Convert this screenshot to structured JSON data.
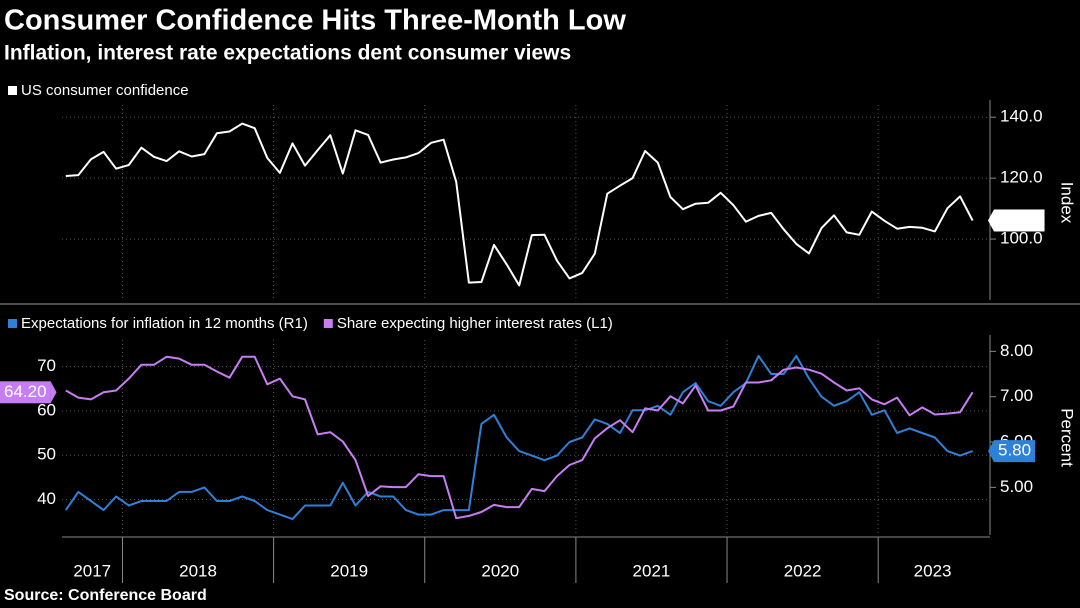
{
  "chart_data": [
    {
      "type": "line",
      "title": "Consumer Confidence Hits Three-Month Low",
      "subtitle": "Inflation, interest rate expectations dent consumer views",
      "source": "Source: Conference Board",
      "ylabel": "Index",
      "y_axis_position": "right",
      "grid": true,
      "xlim": [
        2017.6,
        2023.72
      ],
      "ylim": [
        80,
        144
      ],
      "yticks": [
        {
          "value": 100,
          "label": "100.0"
        },
        {
          "value": 120,
          "label": "120.0"
        },
        {
          "value": 140,
          "label": "140.0"
        }
      ],
      "x": [
        2017.625,
        2017.708,
        2017.792,
        2017.875,
        2017.958,
        2018.042,
        2018.125,
        2018.208,
        2018.292,
        2018.375,
        2018.458,
        2018.542,
        2018.625,
        2018.708,
        2018.792,
        2018.875,
        2018.958,
        2019.042,
        2019.125,
        2019.208,
        2019.292,
        2019.375,
        2019.458,
        2019.542,
        2019.625,
        2019.708,
        2019.792,
        2019.875,
        2019.958,
        2020.042,
        2020.125,
        2020.208,
        2020.292,
        2020.375,
        2020.458,
        2020.542,
        2020.625,
        2020.708,
        2020.792,
        2020.875,
        2020.958,
        2021.042,
        2021.125,
        2021.208,
        2021.292,
        2021.375,
        2021.458,
        2021.542,
        2021.625,
        2021.708,
        2021.792,
        2021.875,
        2021.958,
        2022.042,
        2022.125,
        2022.208,
        2022.292,
        2022.375,
        2022.458,
        2022.542,
        2022.625,
        2022.708,
        2022.792,
        2022.875,
        2022.958,
        2023.042,
        2023.125,
        2023.208,
        2023.292,
        2023.375,
        2023.458,
        2023.542,
        2023.625
      ],
      "series": [
        {
          "name": "US consumer confidence",
          "color": "#ffffff",
          "values": [
            120.7,
            121.0,
            126.2,
            128.6,
            123.1,
            124.3,
            130.0,
            127.0,
            125.6,
            128.8,
            127.1,
            127.9,
            134.7,
            135.3,
            137.9,
            136.4,
            126.6,
            121.7,
            131.4,
            124.1,
            129.2,
            134.1,
            121.5,
            135.7,
            134.2,
            125.1,
            126.1,
            126.8,
            128.2,
            131.6,
            132.6,
            118.8,
            85.7,
            85.9,
            98.1,
            91.7,
            84.8,
            101.3,
            101.4,
            92.9,
            87.1,
            88.9,
            95.2,
            114.9,
            117.5,
            120.0,
            128.9,
            125.1,
            113.8,
            109.8,
            111.6,
            111.9,
            115.2,
            111.1,
            105.7,
            107.6,
            108.6,
            103.2,
            98.4,
            95.3,
            103.6,
            107.8,
            102.2,
            101.4,
            109.0,
            106.0,
            103.4,
            104.0,
            103.7,
            102.5,
            110.1,
            114.0,
            106.1
          ]
        }
      ]
    },
    {
      "type": "line",
      "y2label": "Percent",
      "grid": true,
      "xlim": [
        2017.6,
        2023.72
      ],
      "xticks": [
        {
          "value": 2017,
          "label": "2017"
        },
        {
          "value": 2018,
          "label": "2018"
        },
        {
          "value": 2019,
          "label": "2019"
        },
        {
          "value": 2020,
          "label": "2020"
        },
        {
          "value": 2021,
          "label": "2021"
        },
        {
          "value": 2022,
          "label": "2022"
        },
        {
          "value": 2023,
          "label": "2023"
        }
      ],
      "ylim": [
        32,
        76
      ],
      "yticks": [
        40,
        50,
        60,
        70
      ],
      "y2lim": [
        3.95,
        8.25
      ],
      "y2ticks": [
        {
          "value": 5,
          "label": "5.00"
        },
        {
          "value": 6,
          "label": "6.00"
        },
        {
          "value": 7,
          "label": "7.00"
        },
        {
          "value": 8,
          "label": "8.00"
        }
      ],
      "x": [
        2017.625,
        2017.708,
        2017.792,
        2017.875,
        2017.958,
        2018.042,
        2018.125,
        2018.208,
        2018.292,
        2018.375,
        2018.458,
        2018.542,
        2018.625,
        2018.708,
        2018.792,
        2018.875,
        2018.958,
        2019.042,
        2019.125,
        2019.208,
        2019.292,
        2019.375,
        2019.458,
        2019.542,
        2019.625,
        2019.708,
        2019.792,
        2019.875,
        2019.958,
        2020.042,
        2020.125,
        2020.208,
        2020.292,
        2020.375,
        2020.458,
        2020.542,
        2020.625,
        2020.708,
        2020.792,
        2020.875,
        2020.958,
        2021.042,
        2021.125,
        2021.208,
        2021.292,
        2021.375,
        2021.458,
        2021.542,
        2021.625,
        2021.708,
        2021.792,
        2021.875,
        2021.958,
        2022.042,
        2022.125,
        2022.208,
        2022.292,
        2022.375,
        2022.458,
        2022.542,
        2022.625,
        2022.708,
        2022.792,
        2022.875,
        2022.958,
        2023.042,
        2023.125,
        2023.208,
        2023.292,
        2023.375,
        2023.458,
        2023.542,
        2023.625
      ],
      "series": [
        {
          "name": "Expectations for inflation in 12 months (R1)",
          "color": "#2f80d8",
          "axis": "y2",
          "values": [
            4.5,
            4.9,
            4.7,
            4.5,
            4.8,
            4.6,
            4.7,
            4.7,
            4.7,
            4.9,
            4.9,
            5.0,
            4.7,
            4.7,
            4.8,
            4.7,
            4.5,
            4.4,
            4.3,
            4.6,
            4.6,
            4.6,
            5.1,
            4.6,
            4.9,
            4.8,
            4.8,
            4.5,
            4.4,
            4.4,
            4.5,
            4.5,
            4.5,
            6.4,
            6.6,
            6.1,
            5.8,
            5.7,
            5.6,
            5.7,
            6.0,
            6.1,
            6.5,
            6.4,
            6.2,
            6.7,
            6.7,
            6.8,
            6.6,
            7.1,
            7.3,
            6.9,
            6.8,
            7.1,
            7.3,
            7.9,
            7.5,
            7.5,
            7.9,
            7.4,
            7.0,
            6.8,
            6.9,
            7.1,
            6.6,
            6.7,
            6.2,
            6.3,
            6.2,
            6.1,
            5.8,
            5.7,
            5.8
          ],
          "value_labels": [
            null,
            null,
            null,
            null,
            null,
            null,
            null,
            null,
            null,
            null,
            null,
            null,
            null,
            null,
            null,
            null,
            null,
            null,
            null,
            null,
            null,
            null,
            null,
            null,
            null,
            null,
            null,
            null,
            null,
            null,
            null,
            null,
            null,
            null,
            null,
            null,
            null,
            null,
            null,
            null,
            null,
            null,
            null,
            null,
            null,
            null,
            null,
            null,
            null,
            null,
            null,
            null,
            null,
            null,
            null,
            null,
            null,
            null,
            null,
            null,
            null,
            null,
            null,
            null,
            null,
            null,
            null,
            null,
            null,
            null,
            null,
            null,
            "5.80"
          ]
        },
        {
          "name": "Share expecting higher interest rates (L1)",
          "color": "#c77ef5",
          "values": [
            64.6,
            63.0,
            62.6,
            64.2,
            64.6,
            67.3,
            70.4,
            70.4,
            72.2,
            71.8,
            70.4,
            70.4,
            68.9,
            67.5,
            72.2,
            72.2,
            66.0,
            67.3,
            63.3,
            62.6,
            54.7,
            55.2,
            53.1,
            48.9,
            40.8,
            43.0,
            42.8,
            42.8,
            45.7,
            45.3,
            45.3,
            35.8,
            36.3,
            37.2,
            38.8,
            38.3,
            38.3,
            42.4,
            41.9,
            45.3,
            47.8,
            48.9,
            53.8,
            56.1,
            57.9,
            55.2,
            60.6,
            60.1,
            63.3,
            61.7,
            65.7,
            60.1,
            60.1,
            61.0,
            66.4,
            66.4,
            66.9,
            69.3,
            69.8,
            69.3,
            68.4,
            66.4,
            64.6,
            65.1,
            62.6,
            61.5,
            63.0,
            59.0,
            60.8,
            59.2,
            59.4,
            59.7,
            64.2
          ],
          "value_labels": [
            null,
            null,
            null,
            null,
            null,
            null,
            null,
            null,
            null,
            null,
            null,
            null,
            null,
            null,
            null,
            null,
            null,
            null,
            null,
            null,
            null,
            null,
            null,
            null,
            null,
            null,
            null,
            null,
            null,
            null,
            null,
            null,
            null,
            null,
            null,
            null,
            null,
            null,
            null,
            null,
            null,
            null,
            null,
            null,
            null,
            null,
            null,
            null,
            null,
            null,
            null,
            null,
            null,
            null,
            null,
            null,
            null,
            null,
            null,
            null,
            null,
            null,
            null,
            null,
            null,
            null,
            null,
            null,
            null,
            null,
            null,
            null,
            "64.20"
          ]
        }
      ]
    }
  ]
}
